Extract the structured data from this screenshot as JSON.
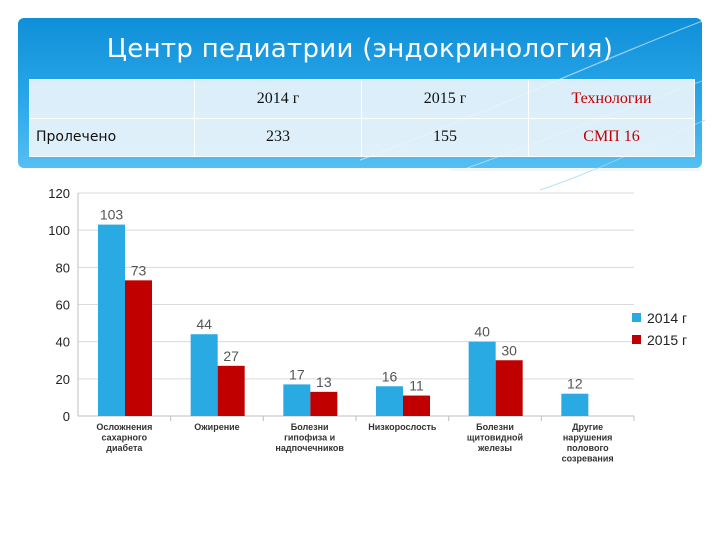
{
  "title": "Центр педиатрии (эндокринология)",
  "summary_table": {
    "headers": [
      "",
      "2014 г",
      "2015 г",
      "Технологии"
    ],
    "row": [
      "Пролечено",
      "233",
      "155",
      "СМП  16"
    ]
  },
  "colors": {
    "series_2014": "#29aae2",
    "series_2015": "#c00000",
    "banner": "#1a9ae0"
  },
  "chart_data": {
    "type": "bar",
    "title": "",
    "xlabel": "",
    "ylabel": "",
    "ylim": [
      0,
      120
    ],
    "yticks": [
      0,
      20,
      40,
      60,
      80,
      100,
      120
    ],
    "grid": true,
    "legend_position": "right",
    "categories": [
      [
        "Осложнения",
        "сахарного",
        "диабета"
      ],
      [
        "Ожирение"
      ],
      [
        "Болезни",
        "гипофиза и",
        "надпочечников"
      ],
      [
        "Низкорослость"
      ],
      [
        "Болезни",
        "щитовидной",
        "железы"
      ],
      [
        "Другие",
        "нарушения",
        "полового",
        "созревания"
      ]
    ],
    "series": [
      {
        "name": "2014 г",
        "values": [
          103,
          44,
          17,
          16,
          40,
          12
        ]
      },
      {
        "name": "2015 г",
        "values": [
          73,
          27,
          13,
          11,
          30,
          null
        ]
      }
    ]
  }
}
